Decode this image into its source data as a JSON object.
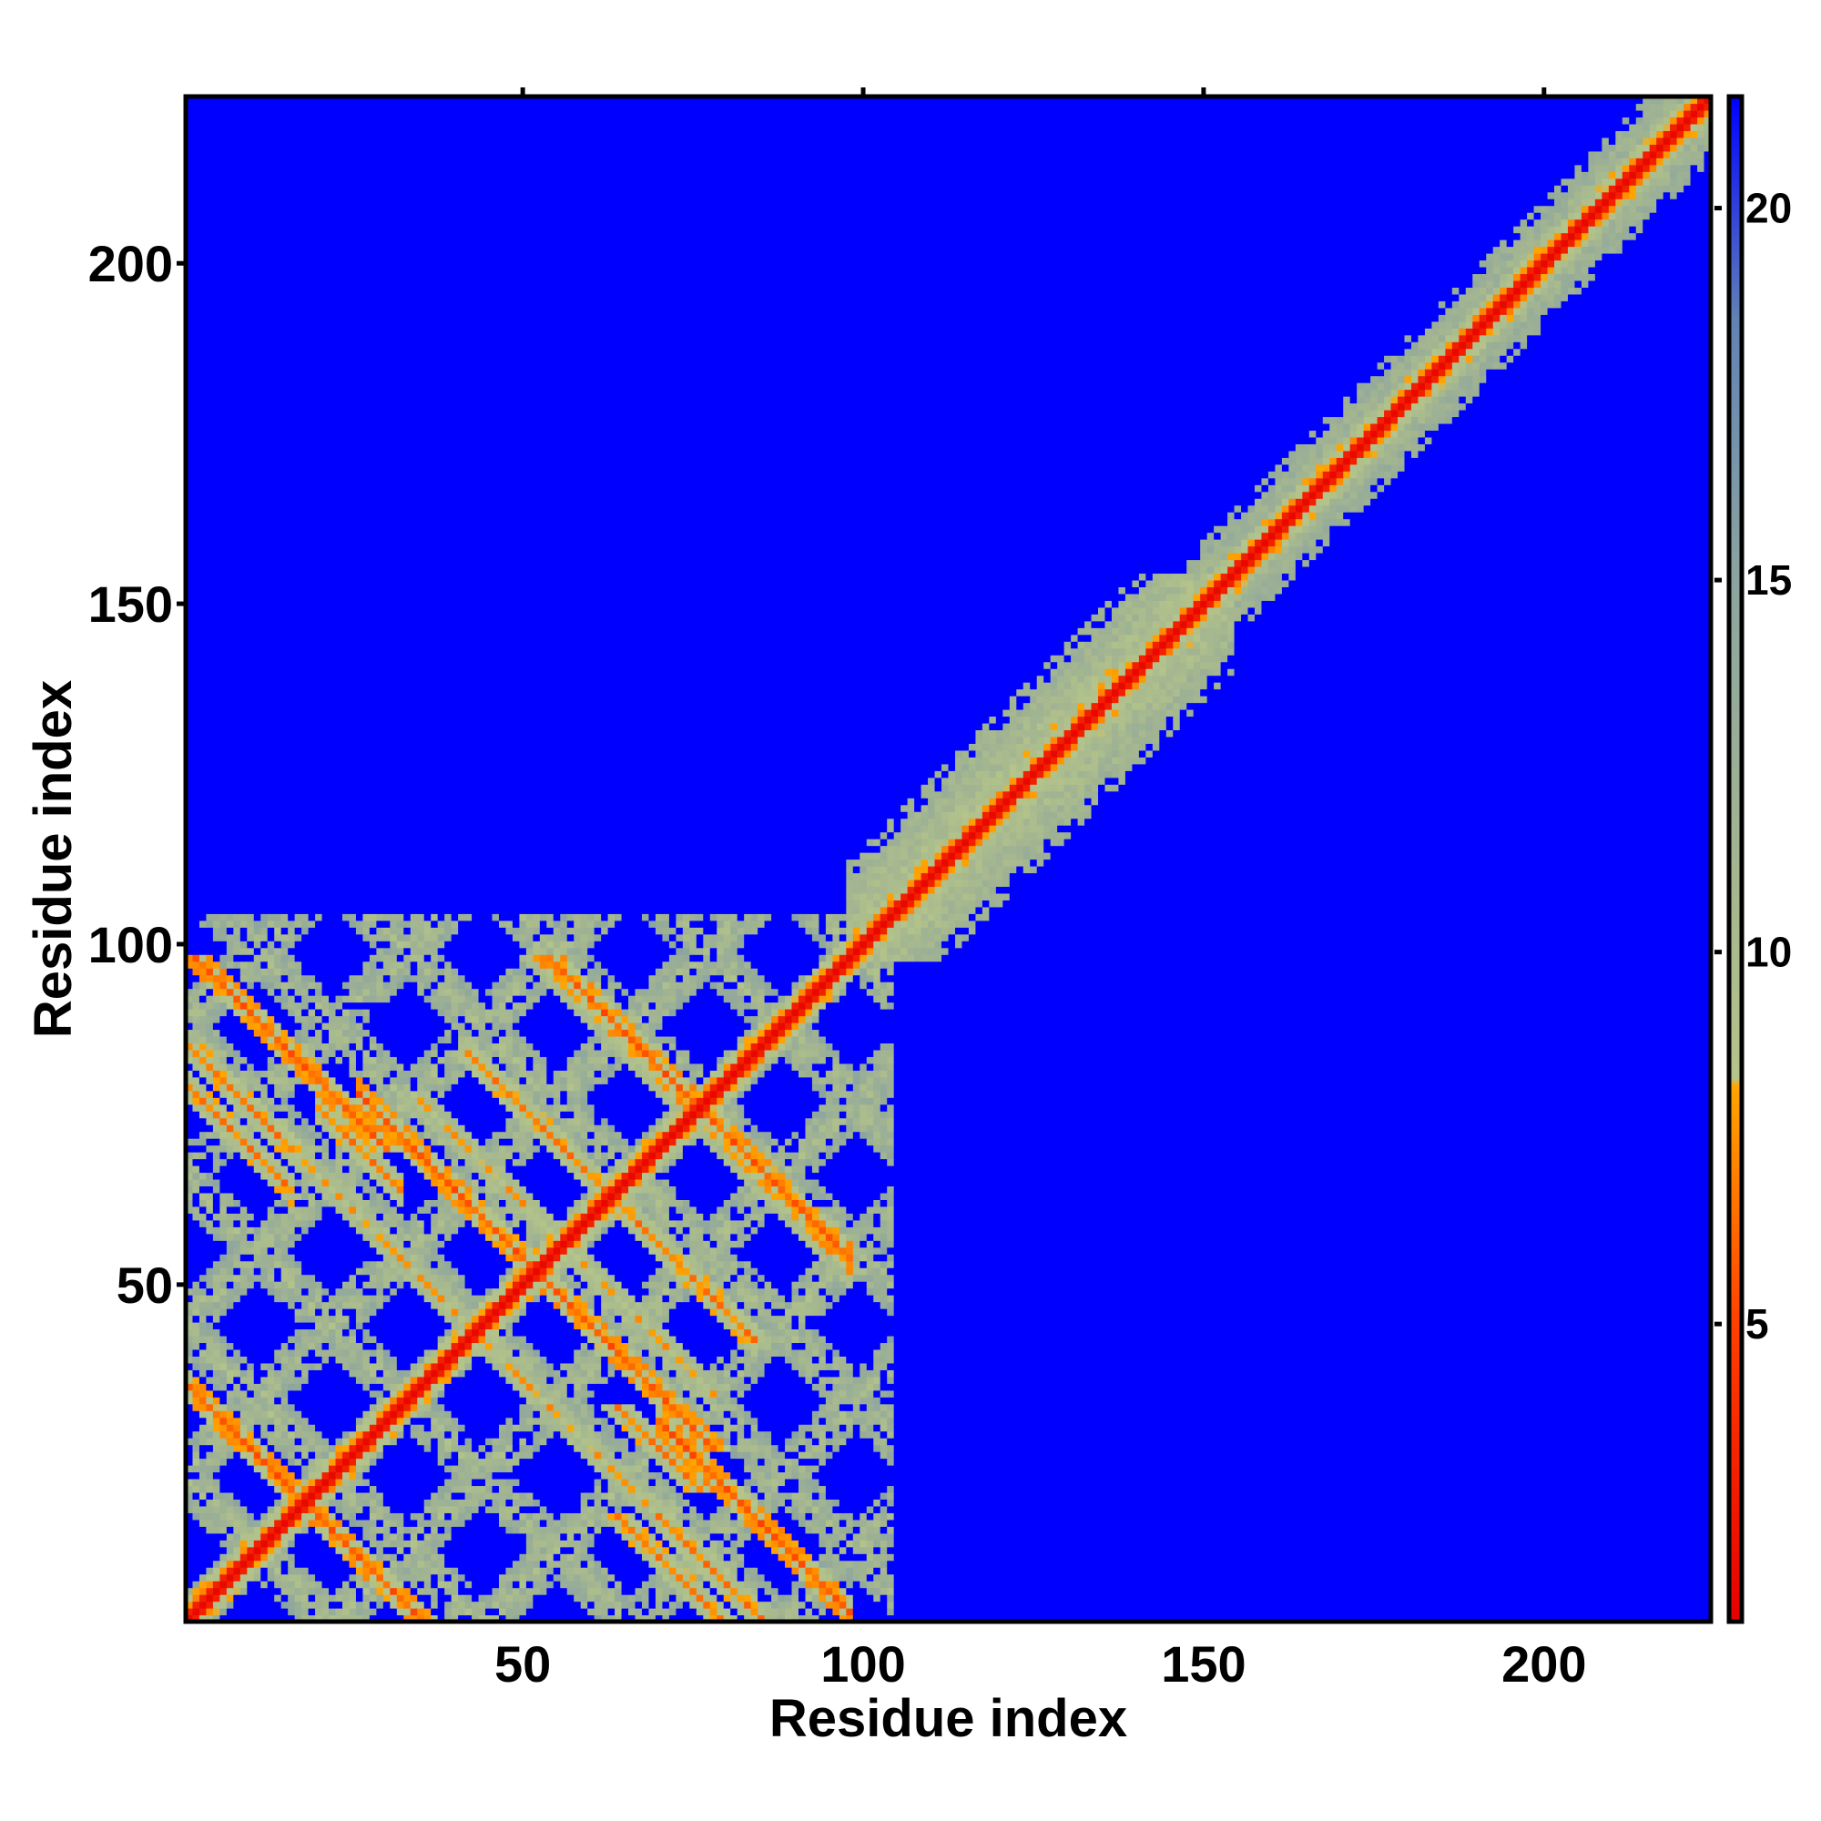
{
  "chart_data": {
    "type": "heatmap",
    "title": "",
    "xlabel": "Residue index",
    "ylabel": "Residue index",
    "xlim": [
      1,
      224
    ],
    "ylim": [
      1,
      224
    ],
    "x_ticks": [
      50,
      100,
      150,
      200
    ],
    "y_ticks": [
      50,
      100,
      150,
      200
    ],
    "x_tick_labels": [
      "50",
      "100",
      "150",
      "200"
    ],
    "y_tick_labels": [
      "50",
      "100",
      "150",
      "200"
    ],
    "grid": false,
    "colorbar": {
      "placement": "right",
      "range": [
        1,
        21.5
      ],
      "ticks": [
        5,
        10,
        15,
        20
      ],
      "tick_labels": [
        "5",
        "10",
        "15",
        "20"
      ],
      "color_stops": [
        {
          "value": 1,
          "color": "#e60000"
        },
        {
          "value": 5,
          "color": "#ff4000"
        },
        {
          "value": 8.2,
          "color": "#ffa500"
        },
        {
          "value": 8.3,
          "color": "#b4c48a"
        },
        {
          "value": 11,
          "color": "#a4b690"
        },
        {
          "value": 15,
          "color": "#8ca4a0"
        },
        {
          "value": 18.5,
          "color": "#6282b4"
        },
        {
          "value": 21.5,
          "color": "#0000ff"
        }
      ]
    },
    "background_value": 21.5,
    "structure": {
      "diagonal": {
        "from": 1,
        "to": 224,
        "value": 3
      },
      "near_diagonal_bands": [
        {
          "from": 100,
          "to": 150,
          "halfwidth": 14,
          "value": 11
        },
        {
          "from": 150,
          "to": 224,
          "halfwidth": 9,
          "value": 12
        }
      ],
      "antiparallel_cross_diagonals": [
        {
          "sum": 36,
          "range": [
            1,
            35
          ],
          "value": 7
        },
        {
          "sum": 86,
          "range": [
            1,
            50
          ],
          "value": 9
        },
        {
          "sum": 86,
          "range": [
            70,
            85
          ],
          "value": 8
        },
        {
          "sum": 100,
          "range": [
            70,
            98
          ],
          "value": 7
        },
        {
          "sum": 152,
          "range": [
            70,
            98
          ],
          "value": 7
        },
        {
          "sum": 104,
          "range": [
            26,
            58
          ],
          "value": 7
        },
        {
          "sum": 112,
          "range": [
            35,
            78
          ],
          "value": 9
        },
        {
          "sum": 126,
          "range": [
            42,
            84
          ],
          "value": 8
        },
        {
          "sum": 150,
          "range": [
            52,
            98
          ],
          "value": 9
        },
        {
          "sum": 96,
          "range": [
            20,
            32
          ],
          "value": 8
        },
        {
          "sum": 80,
          "range": [
            1,
            16
          ],
          "value": 8
        }
      ],
      "mesh_region": {
        "x": [
          1,
          104
        ],
        "y": [
          1,
          104
        ],
        "grid_spacing": 22,
        "value": 11
      }
    }
  }
}
